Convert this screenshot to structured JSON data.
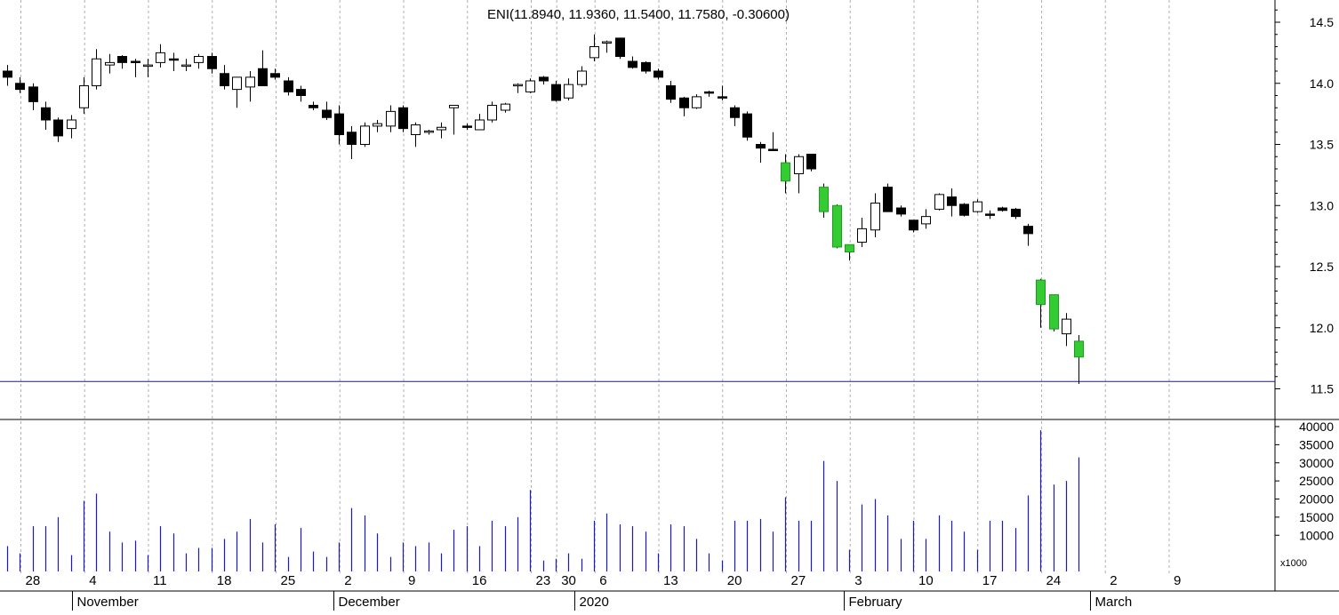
{
  "chart_data": [
    {
      "type": "candlestick",
      "title": "ENI(11.8940, 11.9360, 11.5400, 11.7580, -0.30600)",
      "ylim": [
        11.3,
        14.65
      ],
      "yticks": [
        "11.5",
        "12.0",
        "12.5",
        "13.0",
        "13.5",
        "14.0",
        "14.5"
      ],
      "reference_line": 11.56,
      "grid": true,
      "colors": {
        "up": "#ffffff",
        "down": "#000000",
        "highlight": "#33cc33",
        "outline": "#000000"
      },
      "candles": [
        {
          "open": 14.05,
          "high": 14.15,
          "low": 13.98,
          "close": 14.1,
          "dir": "down",
          "hl": false
        },
        {
          "open": 14.0,
          "high": 14.05,
          "low": 13.92,
          "close": 13.95,
          "dir": "down",
          "hl": false
        },
        {
          "open": 13.97,
          "high": 14.0,
          "low": 13.78,
          "close": 13.85,
          "dir": "down",
          "hl": false
        },
        {
          "open": 13.8,
          "high": 13.85,
          "low": 13.62,
          "close": 13.7,
          "dir": "down",
          "hl": false
        },
        {
          "open": 13.7,
          "high": 13.72,
          "low": 13.52,
          "close": 13.57,
          "dir": "down",
          "hl": false
        },
        {
          "open": 13.63,
          "high": 13.74,
          "low": 13.55,
          "close": 13.7,
          "dir": "up",
          "hl": false
        },
        {
          "open": 13.8,
          "high": 14.05,
          "low": 13.75,
          "close": 13.98,
          "dir": "up",
          "hl": false
        },
        {
          "open": 13.98,
          "high": 14.28,
          "low": 13.95,
          "close": 14.2,
          "dir": "up",
          "hl": false
        },
        {
          "open": 14.15,
          "high": 14.24,
          "low": 14.08,
          "close": 14.17,
          "dir": "up",
          "hl": false
        },
        {
          "open": 14.22,
          "high": 14.23,
          "low": 14.12,
          "close": 14.17,
          "dir": "down",
          "hl": false
        },
        {
          "open": 14.18,
          "high": 14.2,
          "low": 14.05,
          "close": 14.17,
          "dir": "down",
          "hl": false
        },
        {
          "open": 14.15,
          "high": 14.2,
          "low": 14.05,
          "close": 14.15,
          "dir": "up",
          "hl": false
        },
        {
          "open": 14.17,
          "high": 14.32,
          "low": 14.13,
          "close": 14.25,
          "dir": "up",
          "hl": false
        },
        {
          "open": 14.2,
          "high": 14.25,
          "low": 14.1,
          "close": 14.19,
          "dir": "down",
          "hl": false
        },
        {
          "open": 14.15,
          "high": 14.2,
          "low": 14.1,
          "close": 14.15,
          "dir": "up",
          "hl": false
        },
        {
          "open": 14.17,
          "high": 14.24,
          "low": 14.12,
          "close": 14.22,
          "dir": "up",
          "hl": false
        },
        {
          "open": 14.22,
          "high": 14.25,
          "low": 14.08,
          "close": 14.12,
          "dir": "down",
          "hl": false
        },
        {
          "open": 14.08,
          "high": 14.15,
          "low": 13.95,
          "close": 13.98,
          "dir": "down",
          "hl": false
        },
        {
          "open": 13.95,
          "high": 14.05,
          "low": 13.8,
          "close": 14.05,
          "dir": "up",
          "hl": false
        },
        {
          "open": 13.97,
          "high": 14.1,
          "low": 13.85,
          "close": 14.05,
          "dir": "up",
          "hl": false
        },
        {
          "open": 14.12,
          "high": 14.27,
          "low": 13.98,
          "close": 13.98,
          "dir": "down",
          "hl": false
        },
        {
          "open": 14.08,
          "high": 14.12,
          "low": 14.03,
          "close": 14.05,
          "dir": "down",
          "hl": false
        },
        {
          "open": 14.02,
          "high": 14.05,
          "low": 13.9,
          "close": 13.93,
          "dir": "down",
          "hl": false
        },
        {
          "open": 13.95,
          "high": 13.98,
          "low": 13.85,
          "close": 13.9,
          "dir": "down",
          "hl": false
        },
        {
          "open": 13.82,
          "high": 13.85,
          "low": 13.78,
          "close": 13.8,
          "dir": "down",
          "hl": false
        },
        {
          "open": 13.78,
          "high": 13.85,
          "low": 13.7,
          "close": 13.72,
          "dir": "down",
          "hl": false
        },
        {
          "open": 13.75,
          "high": 13.82,
          "low": 13.5,
          "close": 13.58,
          "dir": "down",
          "hl": false
        },
        {
          "open": 13.6,
          "high": 13.65,
          "low": 13.38,
          "close": 13.5,
          "dir": "down",
          "hl": false
        },
        {
          "open": 13.5,
          "high": 13.68,
          "low": 13.48,
          "close": 13.65,
          "dir": "up",
          "hl": false
        },
        {
          "open": 13.65,
          "high": 13.7,
          "low": 13.6,
          "close": 13.67,
          "dir": "up",
          "hl": false
        },
        {
          "open": 13.65,
          "high": 13.82,
          "low": 13.6,
          "close": 13.77,
          "dir": "up",
          "hl": false
        },
        {
          "open": 13.8,
          "high": 13.82,
          "low": 13.6,
          "close": 13.63,
          "dir": "down",
          "hl": false
        },
        {
          "open": 13.58,
          "high": 13.68,
          "low": 13.48,
          "close": 13.66,
          "dir": "up",
          "hl": false
        },
        {
          "open": 13.6,
          "high": 13.62,
          "low": 13.58,
          "close": 13.61,
          "dir": "up",
          "hl": false
        },
        {
          "open": 13.62,
          "high": 13.68,
          "low": 13.55,
          "close": 13.64,
          "dir": "up",
          "hl": false
        },
        {
          "open": 13.8,
          "high": 13.82,
          "low": 13.58,
          "close": 13.82,
          "dir": "up",
          "hl": false
        },
        {
          "open": 13.64,
          "high": 13.67,
          "low": 13.62,
          "close": 13.65,
          "dir": "down",
          "hl": false
        },
        {
          "open": 13.62,
          "high": 13.75,
          "low": 13.62,
          "close": 13.7,
          "dir": "up",
          "hl": false
        },
        {
          "open": 13.7,
          "high": 13.85,
          "low": 13.68,
          "close": 13.82,
          "dir": "up",
          "hl": false
        },
        {
          "open": 13.78,
          "high": 13.84,
          "low": 13.76,
          "close": 13.83,
          "dir": "up",
          "hl": false
        },
        {
          "open": 13.98,
          "high": 14.0,
          "low": 13.92,
          "close": 13.99,
          "dir": "up",
          "hl": false
        },
        {
          "open": 13.93,
          "high": 14.04,
          "low": 13.92,
          "close": 14.02,
          "dir": "up",
          "hl": false
        },
        {
          "open": 14.05,
          "high": 14.06,
          "low": 13.99,
          "close": 14.02,
          "dir": "down",
          "hl": false
        },
        {
          "open": 13.99,
          "high": 14.02,
          "low": 13.85,
          "close": 13.86,
          "dir": "down",
          "hl": false
        },
        {
          "open": 13.88,
          "high": 14.04,
          "low": 13.86,
          "close": 13.99,
          "dir": "up",
          "hl": false
        },
        {
          "open": 13.99,
          "high": 14.14,
          "low": 13.97,
          "close": 14.1,
          "dir": "up",
          "hl": false
        },
        {
          "open": 14.21,
          "high": 14.4,
          "low": 14.18,
          "close": 14.3,
          "dir": "up",
          "hl": false
        },
        {
          "open": 14.33,
          "high": 14.35,
          "low": 14.25,
          "close": 14.34,
          "dir": "up",
          "hl": false
        },
        {
          "open": 14.37,
          "high": 14.37,
          "low": 14.2,
          "close": 14.22,
          "dir": "down",
          "hl": false
        },
        {
          "open": 14.18,
          "high": 14.22,
          "low": 14.12,
          "close": 14.13,
          "dir": "down",
          "hl": false
        },
        {
          "open": 14.17,
          "high": 14.18,
          "low": 14.08,
          "close": 14.1,
          "dir": "down",
          "hl": false
        },
        {
          "open": 14.1,
          "high": 14.12,
          "low": 14.03,
          "close": 14.05,
          "dir": "down",
          "hl": false
        },
        {
          "open": 13.98,
          "high": 14.02,
          "low": 13.84,
          "close": 13.87,
          "dir": "down",
          "hl": false
        },
        {
          "open": 13.88,
          "high": 13.89,
          "low": 13.73,
          "close": 13.8,
          "dir": "down",
          "hl": false
        },
        {
          "open": 13.8,
          "high": 13.91,
          "low": 13.79,
          "close": 13.89,
          "dir": "up",
          "hl": false
        },
        {
          "open": 13.93,
          "high": 13.94,
          "low": 13.89,
          "close": 13.92,
          "dir": "down",
          "hl": false
        },
        {
          "open": 13.89,
          "high": 13.98,
          "low": 13.86,
          "close": 13.88,
          "dir": "down",
          "hl": false
        },
        {
          "open": 13.8,
          "high": 13.82,
          "low": 13.65,
          "close": 13.72,
          "dir": "down",
          "hl": false
        },
        {
          "open": 13.75,
          "high": 13.77,
          "low": 13.53,
          "close": 13.56,
          "dir": "down",
          "hl": false
        },
        {
          "open": 13.5,
          "high": 13.52,
          "low": 13.35,
          "close": 13.47,
          "dir": "down",
          "hl": false
        },
        {
          "open": 13.46,
          "high": 13.6,
          "low": 13.46,
          "close": 13.46,
          "dir": "down",
          "hl": false
        },
        {
          "open": 13.35,
          "high": 13.42,
          "low": 13.1,
          "close": 13.2,
          "dir": "up",
          "hl": true
        },
        {
          "open": 13.26,
          "high": 13.42,
          "low": 13.1,
          "close": 13.4,
          "dir": "up",
          "hl": false
        },
        {
          "open": 13.42,
          "high": 13.42,
          "low": 13.28,
          "close": 13.3,
          "dir": "down",
          "hl": false
        },
        {
          "open": 13.15,
          "high": 13.18,
          "low": 12.9,
          "close": 12.95,
          "dir": "down",
          "hl": true
        },
        {
          "open": 13.0,
          "high": 13.01,
          "low": 12.65,
          "close": 12.66,
          "dir": "down",
          "hl": true
        },
        {
          "open": 12.68,
          "high": 12.68,
          "low": 12.55,
          "close": 12.62,
          "dir": "down",
          "hl": true
        },
        {
          "open": 12.7,
          "high": 12.9,
          "low": 12.66,
          "close": 12.81,
          "dir": "up",
          "hl": false
        },
        {
          "open": 12.8,
          "high": 13.1,
          "low": 12.74,
          "close": 13.02,
          "dir": "up",
          "hl": false
        },
        {
          "open": 13.15,
          "high": 13.18,
          "low": 12.95,
          "close": 12.95,
          "dir": "down",
          "hl": false
        },
        {
          "open": 12.98,
          "high": 13.0,
          "low": 12.91,
          "close": 12.93,
          "dir": "down",
          "hl": false
        },
        {
          "open": 12.88,
          "high": 12.88,
          "low": 12.78,
          "close": 12.8,
          "dir": "down",
          "hl": false
        },
        {
          "open": 12.85,
          "high": 12.97,
          "low": 12.81,
          "close": 12.91,
          "dir": "up",
          "hl": false
        },
        {
          "open": 12.97,
          "high": 13.1,
          "low": 12.96,
          "close": 13.09,
          "dir": "up",
          "hl": false
        },
        {
          "open": 13.07,
          "high": 13.14,
          "low": 12.91,
          "close": 13.0,
          "dir": "down",
          "hl": false
        },
        {
          "open": 13.01,
          "high": 13.02,
          "low": 12.91,
          "close": 12.92,
          "dir": "down",
          "hl": false
        },
        {
          "open": 12.95,
          "high": 13.05,
          "low": 12.94,
          "close": 13.03,
          "dir": "up",
          "hl": false
        },
        {
          "open": 12.93,
          "high": 12.96,
          "low": 12.89,
          "close": 12.92,
          "dir": "down",
          "hl": false
        },
        {
          "open": 12.98,
          "high": 12.99,
          "low": 12.95,
          "close": 12.96,
          "dir": "down",
          "hl": false
        },
        {
          "open": 12.97,
          "high": 12.98,
          "low": 12.89,
          "close": 12.91,
          "dir": "down",
          "hl": false
        },
        {
          "open": 12.83,
          "high": 12.85,
          "low": 12.67,
          "close": 12.77,
          "dir": "down",
          "hl": false
        },
        {
          "open": 12.39,
          "high": 12.4,
          "low": 12.0,
          "close": 12.19,
          "dir": "down",
          "hl": true
        },
        {
          "open": 12.27,
          "high": 12.27,
          "low": 11.97,
          "close": 11.99,
          "dir": "down",
          "hl": true
        },
        {
          "open": 11.95,
          "high": 12.12,
          "low": 11.85,
          "close": 12.07,
          "dir": "up",
          "hl": false
        },
        {
          "open": 11.89,
          "high": 11.94,
          "low": 11.54,
          "close": 11.76,
          "dir": "down",
          "hl": true
        }
      ]
    },
    {
      "type": "bar",
      "ylim": [
        0,
        42000
      ],
      "yticks": [
        "10000",
        "15000",
        "20000",
        "25000",
        "30000",
        "35000",
        "40000"
      ],
      "unit_label": "x1000",
      "bar_color": "#1a1acc",
      "values": [
        7000,
        5000,
        12500,
        12500,
        15000,
        4500,
        19500,
        21500,
        11000,
        8000,
        8500,
        4500,
        12500,
        10500,
        5000,
        6500,
        6500,
        9000,
        11000,
        14500,
        8000,
        13000,
        4000,
        12000,
        5500,
        4000,
        8000,
        17500,
        15500,
        10500,
        4000,
        8000,
        7000,
        8000,
        5000,
        11500,
        12500,
        7000,
        14000,
        12500,
        15000,
        22500,
        3000,
        3500,
        5000,
        3500,
        14000,
        16000,
        13000,
        12500,
        11000,
        5000,
        13000,
        12500,
        9000,
        5000,
        3000,
        14000,
        14000,
        14500,
        11000,
        20500,
        14000,
        14000,
        30500,
        25000,
        6000,
        18500,
        20000,
        15500,
        9000,
        14000,
        9000,
        15500,
        14000,
        11000,
        6000,
        14000,
        14000,
        12000,
        21000,
        39000,
        24000,
        25000,
        31500
      ]
    }
  ],
  "x_axis": {
    "day_labels": [
      {
        "index": 0,
        "text": "28"
      },
      {
        "index": 5,
        "text": "4"
      },
      {
        "index": 10,
        "text": "11"
      },
      {
        "index": 15,
        "text": "18"
      },
      {
        "index": 20,
        "text": "25"
      },
      {
        "index": 25,
        "text": "2"
      },
      {
        "index": 30,
        "text": "9"
      },
      {
        "index": 35,
        "text": "16"
      },
      {
        "index": 40,
        "text": "23"
      },
      {
        "index": 42,
        "text": "30"
      },
      {
        "index": 45,
        "text": "6"
      },
      {
        "index": 50,
        "text": "13"
      },
      {
        "index": 55,
        "text": "20"
      },
      {
        "index": 60,
        "text": "27"
      },
      {
        "index": 65,
        "text": "3"
      },
      {
        "index": 70,
        "text": "10"
      },
      {
        "index": 75,
        "text": "17"
      },
      {
        "index": 80,
        "text": "24"
      },
      {
        "index": 85,
        "text": "2"
      },
      {
        "index": 90,
        "text": "9"
      }
    ],
    "month_labels": [
      {
        "index": 4,
        "text": "November"
      },
      {
        "index": 24.5,
        "text": "December"
      },
      {
        "index": 43.4,
        "text": "2020"
      },
      {
        "index": 64.5,
        "text": "February"
      },
      {
        "index": 83.8,
        "text": "March"
      }
    ]
  }
}
